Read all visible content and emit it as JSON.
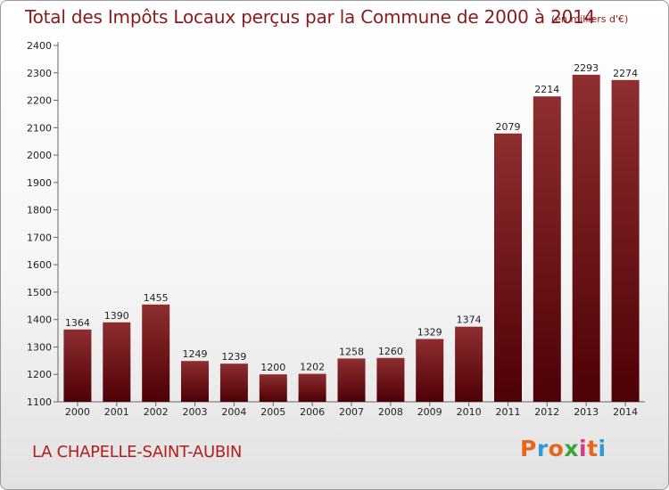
{
  "header": {
    "title": "Total des Impôts Locaux perçus par la Commune de 2000 à 2014",
    "unit": "(en milliers d'€)"
  },
  "footer": {
    "commune": "LA CHAPELLE-SAINT-AUBIN",
    "logo": {
      "text": "Proxiti",
      "colors": [
        "#e8661c",
        "#2f9ad6",
        "#e8661c",
        "#3aa53a",
        "#d63a84",
        "#e8661c",
        "#2f9ad6"
      ]
    }
  },
  "colors": {
    "bar_top": "#8e2e30",
    "bar_bottom": "#4e0006",
    "axis": "#666666",
    "text": "#222222",
    "title": "#8a1a1a",
    "commune": "#b01f1f"
  },
  "chart_data": {
    "type": "bar",
    "title": "Total des Impôts Locaux perçus par la Commune de 2000 à 2014",
    "subtitle": "(en milliers d'€)",
    "xlabel": "",
    "ylabel": "",
    "categories": [
      "2000",
      "2001",
      "2002",
      "2003",
      "2004",
      "2005",
      "2006",
      "2007",
      "2008",
      "2009",
      "2010",
      "2011",
      "2012",
      "2013",
      "2014"
    ],
    "values": [
      1364,
      1390,
      1455,
      1249,
      1239,
      1200,
      1202,
      1258,
      1260,
      1329,
      1374,
      2079,
      2214,
      2293,
      2274
    ],
    "ylim": [
      1100,
      2400
    ],
    "yticks": [
      1100,
      1200,
      1300,
      1400,
      1500,
      1600,
      1700,
      1800,
      1900,
      2000,
      2100,
      2200,
      2300,
      2400
    ],
    "grid": false,
    "data_labels": true
  }
}
